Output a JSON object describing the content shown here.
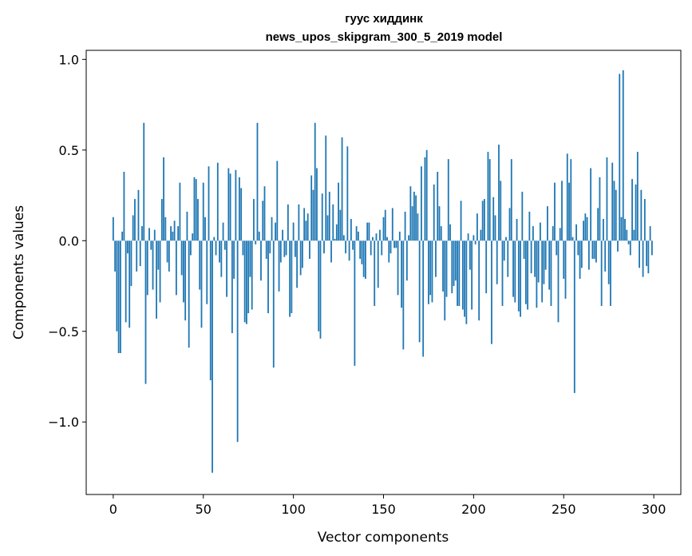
{
  "chart_data": {
    "type": "bar",
    "title_line1": "гуус хиддинк",
    "title_line2": "news_upos_skipgram_300_5_2019 model",
    "xlabel": "Vector components",
    "ylabel": "Components values",
    "xlim": [
      -15,
      315
    ],
    "ylim": [
      -1.4,
      1.05
    ],
    "xticks": [
      0,
      50,
      100,
      150,
      200,
      250,
      300
    ],
    "yticks": [
      -1.0,
      -0.5,
      0.0,
      0.5,
      1.0
    ],
    "ytick_labels": [
      "−1.0",
      "−0.5",
      "0.0",
      "0.5",
      "1.0"
    ],
    "bar_color": "#1f77b4",
    "grid": false,
    "values": [
      0.13,
      -0.17,
      -0.5,
      -0.62,
      -0.62,
      0.05,
      0.38,
      -0.45,
      -0.07,
      -0.48,
      -0.25,
      0.14,
      0.23,
      -0.17,
      0.28,
      -0.14,
      0.08,
      0.65,
      -0.79,
      -0.3,
      0.07,
      -0.05,
      -0.27,
      0.06,
      -0.43,
      -0.16,
      -0.34,
      0.23,
      0.46,
      0.13,
      -0.12,
      -0.17,
      0.08,
      0.05,
      0.11,
      -0.3,
      0.08,
      0.32,
      -0.19,
      -0.34,
      -0.44,
      0.16,
      -0.59,
      -0.08,
      0.04,
      0.35,
      0.34,
      0.23,
      -0.27,
      -0.48,
      0.32,
      0.13,
      -0.35,
      0.41,
      -0.77,
      -1.28,
      0.02,
      -0.08,
      0.43,
      -0.12,
      -0.2,
      0.1,
      -0.05,
      -0.31,
      0.4,
      0.37,
      -0.51,
      -0.21,
      0.39,
      -1.11,
      0.35,
      0.29,
      -0.08,
      -0.45,
      -0.46,
      -0.4,
      -0.2,
      -0.38,
      0.23,
      -0.02,
      0.65,
      0.05,
      -0.22,
      0.22,
      0.3,
      -0.1,
      -0.4,
      -0.07,
      0.13,
      -0.7,
      0.1,
      0.44,
      -0.28,
      -0.12,
      0.06,
      -0.09,
      -0.08,
      0.2,
      -0.42,
      -0.4,
      0.1,
      -0.09,
      -0.26,
      0.2,
      -0.19,
      -0.15,
      0.18,
      0.11,
      0.15,
      -0.1,
      0.36,
      0.28,
      0.65,
      0.4,
      -0.5,
      -0.54,
      0.26,
      -0.07,
      0.58,
      0.14,
      0.27,
      -0.12,
      0.2,
      0.01,
      0.09,
      0.32,
      0.17,
      0.57,
      0.03,
      -0.07,
      0.52,
      -0.11,
      0.12,
      -0.05,
      -0.69,
      0.08,
      0.05,
      -0.1,
      -0.13,
      -0.2,
      -0.21,
      0.1,
      0.1,
      -0.08,
      0.02,
      -0.36,
      0.04,
      -0.26,
      0.06,
      -0.08,
      0.13,
      0.17,
      0.02,
      -0.12,
      -0.07,
      0.18,
      -0.04,
      -0.04,
      -0.3,
      0.05,
      -0.37,
      -0.6,
      0.16,
      -0.22,
      0.03,
      0.3,
      0.19,
      0.27,
      0.25,
      0.15,
      -0.56,
      0.41,
      -0.64,
      0.46,
      0.5,
      -0.35,
      -0.3,
      -0.34,
      0.31,
      -0.2,
      0.38,
      0.19,
      0.08,
      -0.28,
      -0.44,
      -0.31,
      0.45,
      0.09,
      -0.29,
      -0.25,
      -0.22,
      -0.36,
      -0.36,
      0.22,
      -0.38,
      -0.42,
      -0.46,
      0.04,
      -0.16,
      -0.38,
      0.03,
      -0.02,
      0.15,
      -0.44,
      0.06,
      0.22,
      0.23,
      -0.29,
      0.49,
      0.45,
      -0.57,
      0.24,
      0.14,
      -0.24,
      0.53,
      0.33,
      -0.36,
      -0.11,
      0.02,
      -0.2,
      0.18,
      0.45,
      -0.31,
      -0.34,
      0.12,
      -0.39,
      -0.42,
      0.27,
      -0.1,
      -0.35,
      -0.38,
      0.16,
      -0.18,
      0.08,
      -0.2,
      -0.37,
      -0.23,
      0.1,
      -0.34,
      -0.24,
      -0.16,
      0.19,
      -0.27,
      -0.36,
      0.08,
      0.32,
      -0.08,
      -0.45,
      0.07,
      0.33,
      -0.21,
      -0.32,
      0.48,
      0.32,
      0.45,
      0.02,
      -0.84,
      0.09,
      -0.08,
      -0.21,
      -0.15,
      0.11,
      0.15,
      0.13,
      -0.16,
      0.4,
      -0.1,
      -0.1,
      -0.12,
      0.18,
      0.35,
      -0.36,
      0.12,
      -0.17,
      0.46,
      -0.24,
      -0.36,
      0.43,
      0.33,
      0.28,
      -0.06,
      0.92,
      0.13,
      0.94,
      0.12,
      0.06,
      -0.02,
      -0.08,
      0.34,
      0.06,
      0.31,
      0.49,
      -0.15,
      0.28,
      -0.2,
      0.23,
      -0.14,
      -0.18,
      0.08,
      -0.08
    ]
  }
}
